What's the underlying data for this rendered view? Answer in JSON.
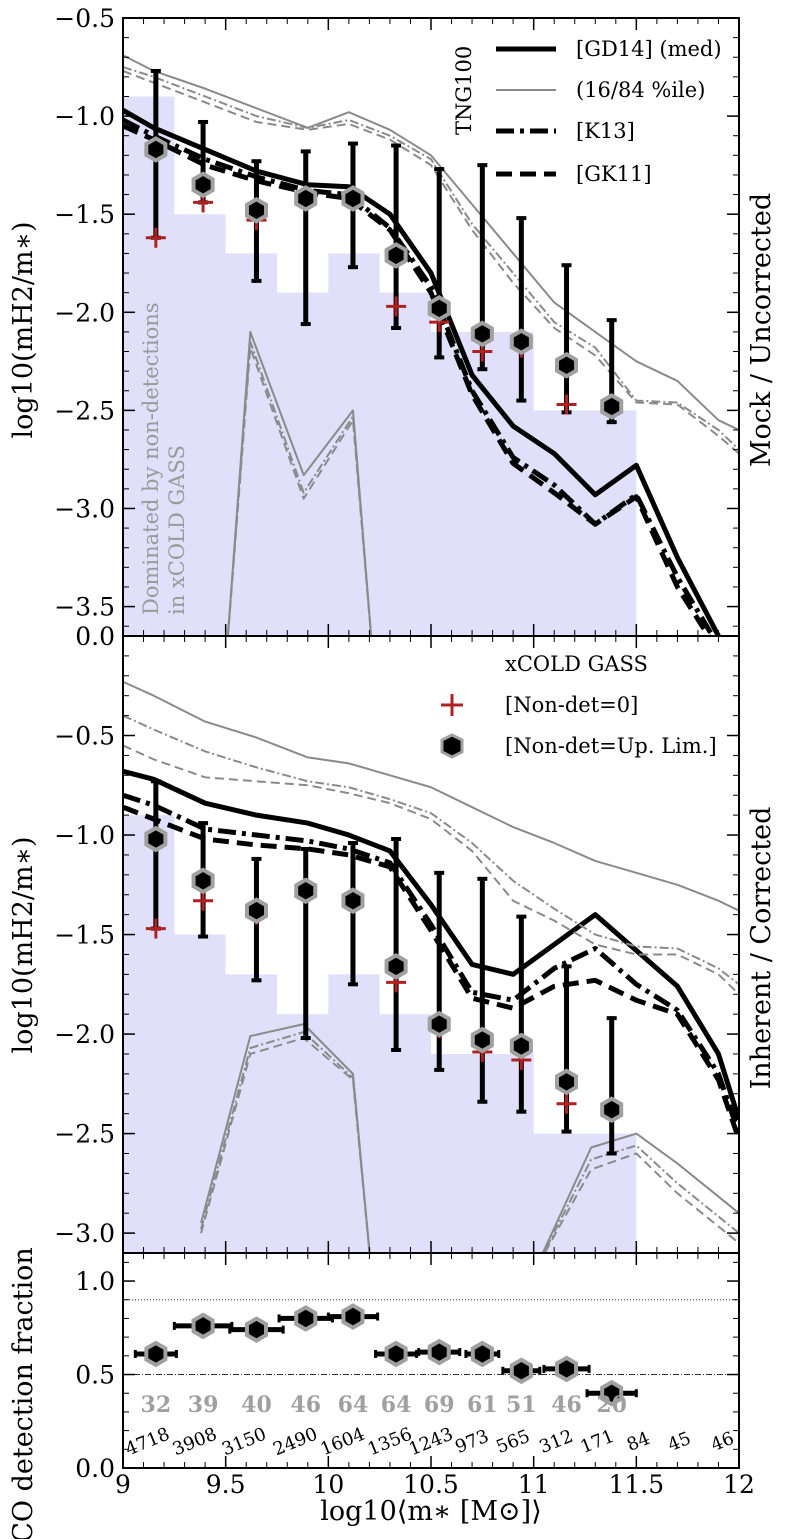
{
  "figure": {
    "xlabel": "log10⟨m∗ [M⊙]⟩",
    "xlim": [
      9,
      12
    ],
    "xticks": [
      "9",
      "9.5",
      "10",
      "10.5",
      "11",
      "11.5",
      "12"
    ],
    "colors": {
      "shade": "#e0e0fa",
      "obs_edge": "#a0a0a0",
      "plus": "#b02020",
      "grey_line": "#8a8a8a"
    }
  },
  "chart_data": [
    {
      "type": "line",
      "panel": "top",
      "ylabel": "log10(mH2/m∗)",
      "side_label": "Mock / Uncorrected",
      "ylim": [
        -3.65,
        -0.5
      ],
      "yticks": [
        "−3.5",
        "−3.0",
        "−2.5",
        "−2.0",
        "−1.5",
        "−1.0",
        "−0.5"
      ],
      "ytick_values": [
        -3.5,
        -3.0,
        -2.5,
        -2.0,
        -1.5,
        -1.0,
        -0.5
      ],
      "legend_title": "TNG100",
      "legend": [
        "[GD14] (med)",
        "(16/84 %ile)",
        "[K13]",
        "[GK11]"
      ],
      "annotation": [
        "Dominated by non-detections",
        "in xCOLD GASS"
      ],
      "shade_steps": [
        [
          9,
          -0.9
        ],
        [
          9.25,
          -1.5
        ],
        [
          9.5,
          -1.7
        ],
        [
          9.75,
          -1.9
        ],
        [
          10,
          -1.7
        ],
        [
          10.25,
          -1.9
        ],
        [
          10.5,
          -2.1
        ],
        [
          10.75,
          -2.1
        ],
        [
          11,
          -2.5
        ],
        [
          11.5,
          -2.5
        ]
      ],
      "x": [
        9.0,
        9.15,
        9.4,
        9.65,
        9.9,
        10.1,
        10.3,
        10.5,
        10.7,
        10.9,
        11.1,
        11.3,
        11.5,
        11.7,
        11.9,
        12.0
      ],
      "series": [
        {
          "name": "GD14 med",
          "values": [
            -0.97,
            -1.06,
            -1.17,
            -1.28,
            -1.35,
            -1.36,
            -1.5,
            -1.8,
            -2.32,
            -2.58,
            -2.72,
            -2.93,
            -2.78,
            -3.25,
            -3.65,
            -3.8
          ]
        },
        {
          "name": "K13",
          "values": [
            -1.02,
            -1.1,
            -1.22,
            -1.31,
            -1.38,
            -1.4,
            -1.57,
            -1.87,
            -2.4,
            -2.74,
            -2.88,
            -3.08,
            -2.93,
            -3.35,
            -3.7,
            -3.8
          ]
        },
        {
          "name": "GK11",
          "values": [
            -1.05,
            -1.12,
            -1.25,
            -1.33,
            -1.39,
            -1.42,
            -1.58,
            -1.9,
            -2.42,
            -2.77,
            -2.92,
            -3.08,
            -2.94,
            -3.4,
            -3.73,
            -3.8
          ]
        },
        {
          "name": "GD14 p84",
          "values": [
            -0.69,
            -0.77,
            -0.86,
            -0.96,
            -1.06,
            -0.98,
            -1.07,
            -1.2,
            -1.45,
            -1.7,
            -1.95,
            -2.1,
            -2.25,
            -2.35,
            -2.55,
            -2.6
          ]
        },
        {
          "name": "K13 p84",
          "values": [
            -0.75,
            -0.8,
            -0.9,
            -1.0,
            -1.06,
            -1.02,
            -1.1,
            -1.22,
            -1.55,
            -1.8,
            -2.05,
            -2.18,
            -2.45,
            -2.46,
            -2.6,
            -2.7
          ]
        },
        {
          "name": "GK11 p84",
          "values": [
            -0.77,
            -0.83,
            -0.93,
            -1.03,
            -1.07,
            -1.04,
            -1.12,
            -1.25,
            -1.58,
            -1.85,
            -2.08,
            -2.22,
            -2.46,
            -2.47,
            -2.63,
            -2.72
          ]
        },
        {
          "name": "GD14 p16",
          "x": [
            9.5,
            9.62,
            9.88,
            10.12,
            10.22
          ],
          "values": [
            -3.8,
            -2.1,
            -2.83,
            -2.5,
            -3.8
          ]
        },
        {
          "name": "K13 p16",
          "x": [
            9.5,
            9.62,
            9.88,
            10.12,
            10.22
          ],
          "values": [
            -3.8,
            -2.15,
            -2.92,
            -2.53,
            -3.8
          ]
        },
        {
          "name": "GK11 p16",
          "x": [
            9.5,
            9.62,
            9.88,
            10.12,
            10.22
          ],
          "values": [
            -3.8,
            -2.18,
            -2.95,
            -2.55,
            -3.8
          ]
        }
      ],
      "observations": {
        "x": [
          9.16,
          9.39,
          9.65,
          9.89,
          10.12,
          10.33,
          10.54,
          10.75,
          10.94,
          11.16,
          11.38
        ],
        "uplim_median": [
          -1.17,
          -1.35,
          -1.48,
          -1.42,
          -1.42,
          -1.71,
          -1.98,
          -2.11,
          -2.15,
          -2.27,
          -2.48
        ],
        "err_low": [
          -1.62,
          -1.44,
          -1.84,
          -2.06,
          -1.77,
          -2.08,
          -2.23,
          -2.29,
          -2.45,
          -2.51,
          -2.56
        ],
        "err_high": [
          -0.77,
          -1.03,
          -1.23,
          -1.18,
          -1.14,
          -1.15,
          -1.27,
          -1.25,
          -1.52,
          -1.76,
          -2.04
        ],
        "nondet_zero": [
          -1.62,
          -1.44,
          -1.53,
          -1.42,
          -1.42,
          -1.97,
          -2.05,
          -2.2,
          -2.18,
          -2.47,
          null
        ]
      }
    },
    {
      "type": "line",
      "panel": "middle",
      "ylabel": "log10(mH2/m∗)",
      "side_label": "Inherent / Corrected",
      "ylim": [
        -3.1,
        0.0
      ],
      "yticks": [
        "−3.0",
        "−2.5",
        "−2.0",
        "−1.5",
        "−1.0",
        "−0.5",
        "0.0"
      ],
      "ytick_values": [
        -3.0,
        -2.5,
        -2.0,
        -1.5,
        -1.0,
        -0.5,
        0.0
      ],
      "legend_title": "xCOLD GASS",
      "legend": [
        "[Non-det=0]",
        "[Non-det=Up. Lim.]"
      ],
      "shade_steps": [
        [
          9,
          -0.9
        ],
        [
          9.25,
          -1.5
        ],
        [
          9.5,
          -1.7
        ],
        [
          9.75,
          -1.9
        ],
        [
          10,
          -1.7
        ],
        [
          10.25,
          -1.9
        ],
        [
          10.5,
          -2.1
        ],
        [
          10.75,
          -2.1
        ],
        [
          11,
          -2.5
        ],
        [
          11.5,
          -2.5
        ]
      ],
      "x": [
        9.0,
        9.15,
        9.4,
        9.65,
        9.9,
        10.1,
        10.3,
        10.5,
        10.7,
        10.9,
        11.1,
        11.3,
        11.5,
        11.7,
        11.9,
        12.0
      ],
      "series": [
        {
          "name": "GD14 med",
          "values": [
            -0.68,
            -0.72,
            -0.84,
            -0.9,
            -0.94,
            -1.0,
            -1.08,
            -1.35,
            -1.65,
            -1.7,
            -1.55,
            -1.4,
            -1.58,
            -1.76,
            -2.1,
            -2.43
          ]
        },
        {
          "name": "K13",
          "values": [
            -0.8,
            -0.85,
            -0.97,
            -1.0,
            -1.03,
            -1.07,
            -1.14,
            -1.45,
            -1.79,
            -1.83,
            -1.67,
            -1.57,
            -1.75,
            -1.88,
            -2.2,
            -2.5
          ]
        },
        {
          "name": "GK11",
          "values": [
            -0.86,
            -0.92,
            -1.02,
            -1.05,
            -1.07,
            -1.1,
            -1.16,
            -1.48,
            -1.82,
            -1.87,
            -1.76,
            -1.73,
            -1.83,
            -1.9,
            -2.23,
            -2.53
          ]
        },
        {
          "name": "GD14 p84",
          "values": [
            -0.23,
            -0.3,
            -0.43,
            -0.51,
            -0.61,
            -0.64,
            -0.7,
            -0.76,
            -0.86,
            -0.96,
            -1.04,
            -1.13,
            -1.19,
            -1.25,
            -1.33,
            -1.38
          ]
        },
        {
          "name": "K13 p84",
          "values": [
            -0.4,
            -0.47,
            -0.58,
            -0.66,
            -0.73,
            -0.76,
            -0.82,
            -0.89,
            -1.04,
            -1.23,
            -1.37,
            -1.5,
            -1.56,
            -1.57,
            -1.67,
            -1.75
          ]
        },
        {
          "name": "GK11 p84",
          "values": [
            -0.55,
            -0.62,
            -0.71,
            -0.73,
            -0.75,
            -0.79,
            -0.84,
            -0.92,
            -1.08,
            -1.33,
            -1.43,
            -1.55,
            -1.6,
            -1.6,
            -1.7,
            -1.8
          ]
        },
        {
          "name": "GD14 p16",
          "x": [
            9.38,
            9.62,
            9.88,
            10.12,
            10.21,
            11.0,
            11.28,
            11.5,
            11.7,
            12.0
          ],
          "values": [
            -2.95,
            -2.01,
            -1.95,
            -2.2,
            -3.2,
            -3.2,
            -2.57,
            -2.5,
            -2.65,
            -2.9
          ]
        },
        {
          "name": "K13 p16",
          "x": [
            9.38,
            9.62,
            9.88,
            10.12,
            10.21,
            11.0,
            11.28,
            11.5,
            11.7,
            12.0
          ],
          "values": [
            -2.98,
            -2.07,
            -1.99,
            -2.22,
            -3.2,
            -3.2,
            -2.63,
            -2.56,
            -2.75,
            -3.0
          ]
        },
        {
          "name": "GK11 p16",
          "x": [
            9.38,
            9.62,
            9.88,
            10.12,
            10.21,
            11.0,
            11.28,
            11.5,
            11.7,
            12.0
          ],
          "values": [
            -3.0,
            -2.1,
            -2.02,
            -2.23,
            -3.2,
            -3.2,
            -2.68,
            -2.6,
            -2.8,
            -3.05
          ]
        }
      ],
      "observations": {
        "x": [
          9.16,
          9.39,
          9.65,
          9.89,
          10.12,
          10.33,
          10.54,
          10.75,
          10.94,
          11.16,
          11.38
        ],
        "uplim_median": [
          -1.02,
          -1.23,
          -1.38,
          -1.28,
          -1.33,
          -1.66,
          -1.95,
          -2.03,
          -2.06,
          -2.24,
          -2.38
        ],
        "err_low": [
          -1.47,
          -1.51,
          -1.73,
          -2.02,
          -1.75,
          -2.08,
          -2.18,
          -2.34,
          -2.39,
          -2.49,
          -2.6
        ],
        "err_high": [
          -0.73,
          -0.94,
          -1.12,
          -1.07,
          -1.04,
          -1.02,
          -1.19,
          -1.22,
          -1.41,
          -1.66,
          -1.92
        ],
        "nondet_zero": [
          -1.47,
          -1.33,
          -1.4,
          -1.28,
          -1.33,
          -1.74,
          -1.97,
          -2.09,
          -2.13,
          -2.35,
          null
        ]
      }
    },
    {
      "type": "scatter",
      "panel": "bottom",
      "ylabel": "CO detection fraction",
      "ylim": [
        0.0,
        1.15
      ],
      "yticks": [
        "0.0",
        "0.5",
        "1.0"
      ],
      "ytick_values": [
        0.0,
        0.5,
        1.0
      ],
      "reference_lines": [
        0.9,
        0.5
      ],
      "points": {
        "x": [
          9.16,
          9.39,
          9.65,
          9.89,
          10.12,
          10.33,
          10.54,
          10.75,
          10.94,
          11.16,
          11.38
        ],
        "xerr": [
          0.1,
          0.14,
          0.13,
          0.13,
          0.12,
          0.1,
          0.1,
          0.08,
          0.09,
          0.11,
          0.12
        ],
        "values": [
          0.61,
          0.76,
          0.74,
          0.8,
          0.81,
          0.61,
          0.62,
          0.61,
          0.52,
          0.53,
          0.4
        ]
      },
      "obs_counts": [
        "32",
        "39",
        "40",
        "46",
        "64",
        "64",
        "69",
        "61",
        "51",
        "46",
        "20"
      ],
      "obs_count_x": [
        9.16,
        9.39,
        9.65,
        9.89,
        10.12,
        10.33,
        10.54,
        10.75,
        10.94,
        11.16,
        11.38
      ],
      "sim_counts": [
        "4718",
        "3908",
        "3150",
        "2490",
        "1604",
        "1356",
        "1243",
        "973",
        "565",
        "312",
        "171",
        "84",
        "45",
        "46"
      ],
      "sim_count_x": [
        9.13,
        9.36,
        9.6,
        9.85,
        10.08,
        10.31,
        10.51,
        10.71,
        10.91,
        11.12,
        11.32,
        11.52,
        11.72,
        11.93
      ]
    }
  ]
}
